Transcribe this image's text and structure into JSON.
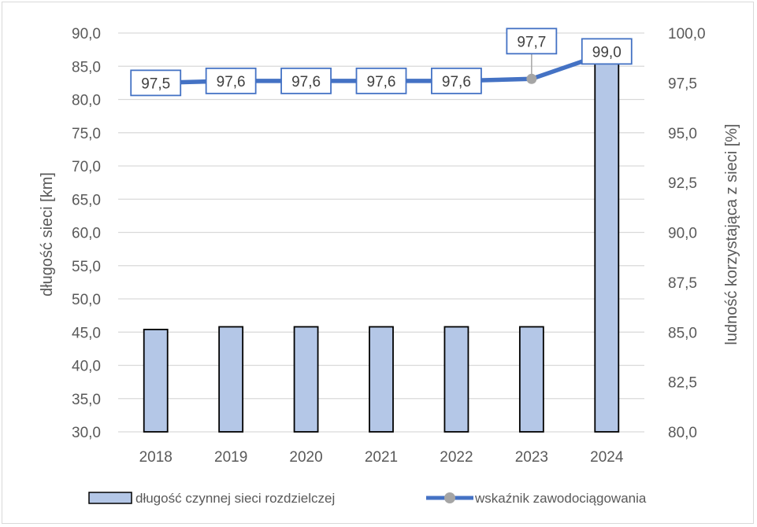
{
  "chart_data": {
    "type": "bar+line",
    "categories": [
      "2018",
      "2019",
      "2020",
      "2021",
      "2022",
      "2023",
      "2024"
    ],
    "series": [
      {
        "name": "długość czynnej sieci rozdzielczej",
        "type": "bar",
        "axis": "left",
        "values": [
          45.4,
          45.8,
          45.8,
          45.8,
          45.8,
          45.8,
          85.5
        ],
        "color": "#b4c7e7",
        "edge_color": "#000000"
      },
      {
        "name": "wskaźnik zawodociągowania",
        "type": "line",
        "axis": "right",
        "values": [
          97.5,
          97.6,
          97.6,
          97.6,
          97.6,
          97.7,
          99.0
        ],
        "data_labels": [
          "97,5",
          "97,6",
          "97,6",
          "97,6",
          "97,6",
          "97,7",
          "99,0"
        ],
        "color": "#4472c4",
        "marker_color": "#a5a5a5"
      }
    ],
    "ylabel": "długość sieci [km]",
    "y2label": "ludność korzystająca z sieci [%]",
    "ylim": [
      30,
      90
    ],
    "y2lim": [
      80,
      100
    ],
    "y_ticks": [
      "30,0",
      "35,0",
      "40,0",
      "45,0",
      "50,0",
      "55,0",
      "60,0",
      "65,0",
      "70,0",
      "75,0",
      "80,0",
      "85,0",
      "90,0"
    ],
    "y2_ticks": [
      "80,0",
      "82,5",
      "85,0",
      "87,5",
      "90,0",
      "92,5",
      "95,0",
      "97,5",
      "100,0"
    ],
    "grid": true,
    "legend_position": "bottom"
  }
}
